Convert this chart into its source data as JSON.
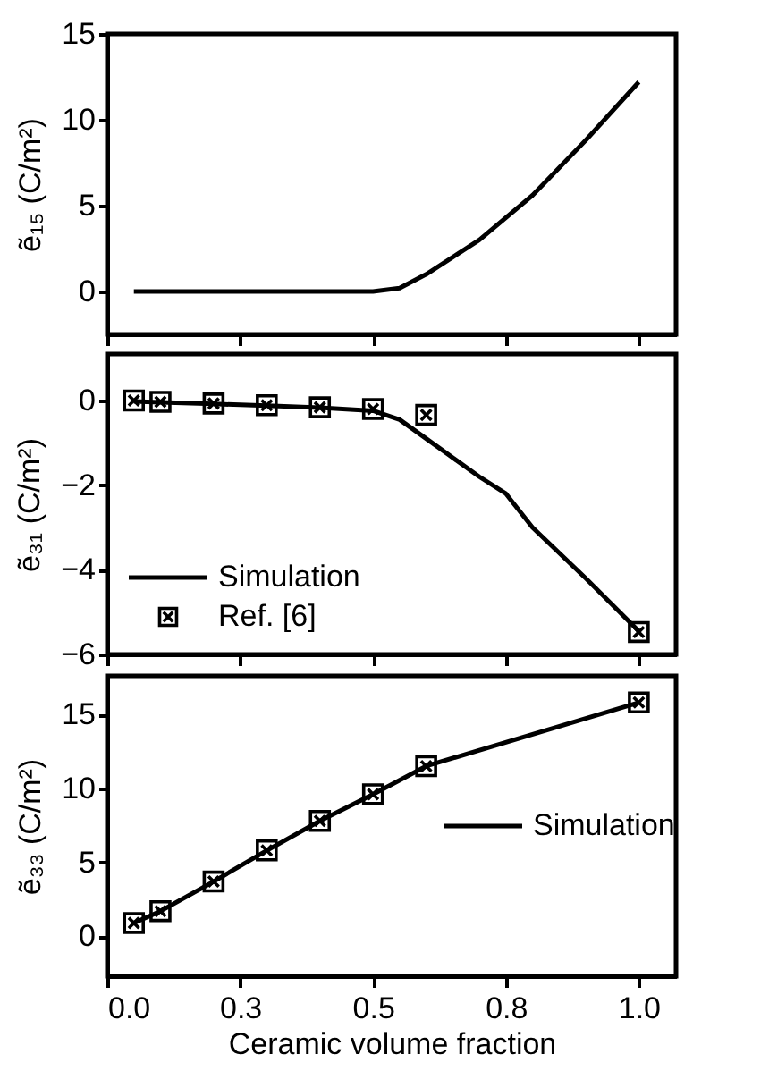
{
  "chart_data": [
    {
      "type": "line",
      "ylabel": "ẽ₁₅ (C/m²)",
      "xlim": [
        0,
        1.07
      ],
      "ylim": [
        -2.5,
        15
      ],
      "yticks": [
        0,
        5,
        10,
        15
      ],
      "xticks": [
        {
          "value": 0,
          "label": null
        },
        {
          "value": 0.25,
          "label": null
        },
        {
          "value": 0.5,
          "label": null
        },
        {
          "value": 0.75,
          "label": null
        },
        {
          "value": 1.0,
          "label": null
        }
      ],
      "tick_labels": "y",
      "grid": false,
      "legend": false,
      "series": [
        {
          "color": "#000000",
          "x": [
            0.05,
            0.5,
            0.55,
            0.6,
            0.7,
            0.8,
            0.9,
            1.0
          ],
          "values": [
            0,
            0,
            0.2,
            1.0,
            3.0,
            5.6,
            8.8,
            12.2
          ]
        }
      ]
    },
    {
      "type": "line",
      "ylabel": "ẽ₃₁ (C/m²)",
      "xlim": [
        0,
        1.07
      ],
      "ylim": [
        -6,
        1.1
      ],
      "yticks": [
        -6,
        -4,
        -2,
        0
      ],
      "xticks": [
        {
          "value": 0,
          "label": null
        },
        {
          "value": 0.25,
          "label": null
        },
        {
          "value": 0.5,
          "label": null
        },
        {
          "value": 0.75,
          "label": null
        },
        {
          "value": 1.0,
          "label": null
        }
      ],
      "tick_labels": "y",
      "grid": false,
      "legend": "bottom left",
      "series": [
        {
          "name": "Simulation",
          "color": "#000000",
          "x": [
            0.05,
            0.1,
            0.2,
            0.3,
            0.4,
            0.5,
            0.55,
            0.6,
            0.7,
            0.75,
            0.8,
            0.9,
            1.0
          ],
          "values": [
            -0.02,
            -0.04,
            -0.08,
            -0.12,
            -0.17,
            -0.24,
            -0.45,
            -0.9,
            -1.8,
            -2.2,
            -3.0,
            -4.2,
            -5.45
          ]
        },
        {
          "name": "Ref. [6]",
          "type": "scatter",
          "marker": "cross",
          "color": "#000000",
          "x": [
            0.05,
            0.1,
            0.2,
            0.3,
            0.4,
            0.5,
            0.6,
            1.0
          ],
          "values": [
            0.0,
            -0.03,
            -0.07,
            -0.11,
            -0.16,
            -0.2,
            -0.34,
            -5.47
          ]
        }
      ]
    },
    {
      "type": "line",
      "xlabel": "Ceramic volume fraction",
      "ylabel": "ẽ₃₃ (C/m²)",
      "xlim": [
        0,
        1.07
      ],
      "ylim": [
        -2.7,
        17.6
      ],
      "yticks": [
        0,
        5,
        10,
        15
      ],
      "xticks": [
        {
          "value": 0,
          "label": "0.0"
        },
        {
          "value": 0.25,
          "label": "0.3"
        },
        {
          "value": 0.5,
          "label": "0.5"
        },
        {
          "value": 0.75,
          "label": "0.8"
        },
        {
          "value": 1.0,
          "label": "1.0"
        }
      ],
      "grid": false,
      "legend": "right",
      "series": [
        {
          "name": "Simulation",
          "color": "#000000",
          "x": [
            0.05,
            0.1,
            0.2,
            0.3,
            0.4,
            0.5,
            0.6,
            1.0
          ],
          "values": [
            0.9,
            1.7,
            3.7,
            5.8,
            7.8,
            9.6,
            11.5,
            15.8
          ]
        },
        {
          "type": "scatter",
          "marker": "cross",
          "color": "#000000",
          "x": [
            0.05,
            0.1,
            0.2,
            0.3,
            0.4,
            0.5,
            0.6,
            1.0
          ],
          "values": [
            0.9,
            1.7,
            3.7,
            5.8,
            7.8,
            9.6,
            11.5,
            15.8
          ]
        }
      ]
    }
  ]
}
